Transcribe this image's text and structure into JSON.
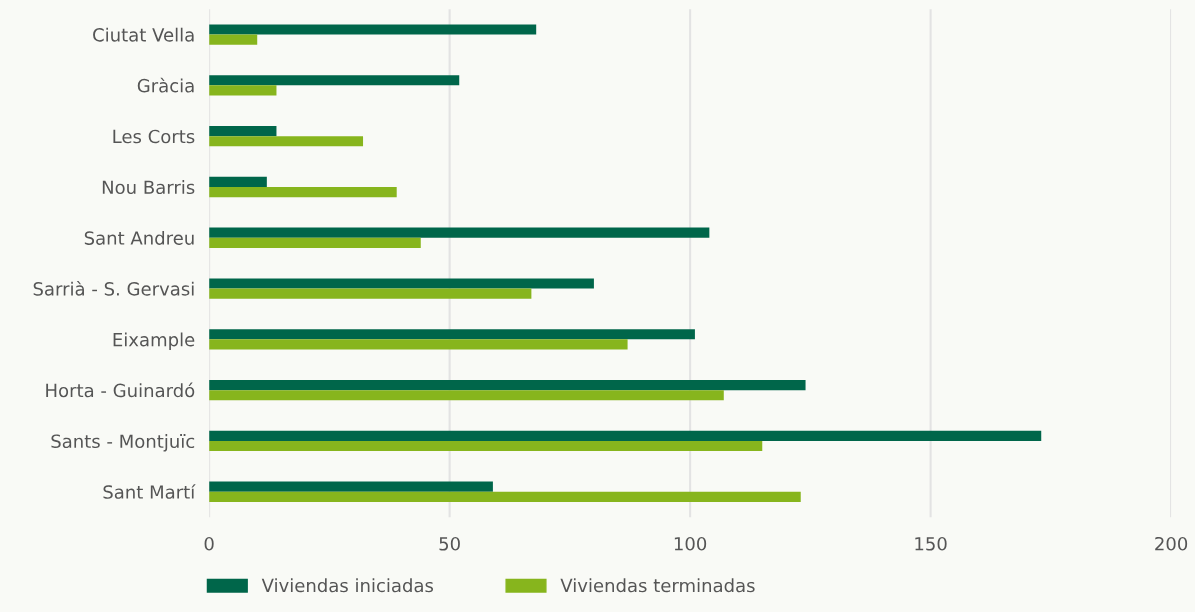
{
  "chart_data": {
    "type": "bar",
    "orientation": "horizontal",
    "categories": [
      "Ciutat Vella",
      "Gràcia",
      "Les Corts",
      "Nou Barris",
      "Sant Andreu",
      "Sarrià - S. Gervasi",
      "Eixample",
      "Horta - Guinardó",
      "Sants - Montjuïc",
      "Sant Martí"
    ],
    "series": [
      {
        "name": "Viviendas iniciadas",
        "color": "#00664a",
        "values": [
          68,
          52,
          14,
          12,
          104,
          80,
          101,
          124,
          173,
          59
        ]
      },
      {
        "name": "Viviendas terminadas",
        "color": "#87b51d",
        "values": [
          10,
          14,
          32,
          39,
          44,
          67,
          87,
          107,
          115,
          123
        ]
      }
    ],
    "xlim": [
      0,
      200
    ],
    "xticks": [
      0,
      50,
      100,
      150,
      200
    ],
    "grid": "x",
    "legend": "bottom left"
  }
}
